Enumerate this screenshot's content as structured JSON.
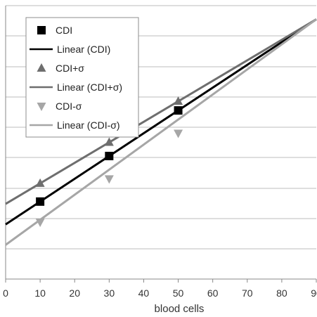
{
  "chart_data": {
    "type": "scatter",
    "title": "",
    "xlabel": "blood cells",
    "ylabel": "",
    "xlim": [
      0,
      90
    ],
    "x_ticks": [
      0,
      10,
      20,
      30,
      40,
      50,
      60,
      70,
      80,
      90
    ],
    "x_tick_labels": [
      "0",
      "10",
      "20",
      "30",
      "40",
      "50",
      "60",
      "70",
      "80",
      "90"
    ],
    "grid": "horizontal",
    "legend_position": "top-left",
    "series": [
      {
        "name": "CDI",
        "kind": "points",
        "marker": "square",
        "color": "#000000",
        "x": [
          10,
          30,
          50
        ],
        "y": [
          0.34,
          0.54,
          0.74
        ]
      },
      {
        "name": "Linear (CDI)",
        "kind": "trendline",
        "color": "#000000",
        "x": [
          0,
          90
        ],
        "y": [
          0.24,
          1.14
        ]
      },
      {
        "name": "CDI+σ",
        "kind": "points",
        "marker": "triangle-up",
        "color": "#6e6e6e",
        "x": [
          10,
          30,
          50
        ],
        "y": [
          0.42,
          0.6,
          0.78
        ]
      },
      {
        "name": "Linear (CDI+σ)",
        "kind": "trendline",
        "color": "#6e6e6e",
        "x": [
          0,
          90
        ],
        "y": [
          0.33,
          1.14
        ]
      },
      {
        "name": "CDI-σ",
        "kind": "points",
        "marker": "triangle-down",
        "color": "#a6a6a6",
        "x": [
          10,
          30,
          50
        ],
        "y": [
          0.25,
          0.44,
          0.64
        ]
      },
      {
        "name": "Linear (CDI-σ)",
        "kind": "trendline",
        "color": "#a6a6a6",
        "x": [
          0,
          90
        ],
        "y": [
          0.15,
          1.14
        ]
      }
    ]
  }
}
